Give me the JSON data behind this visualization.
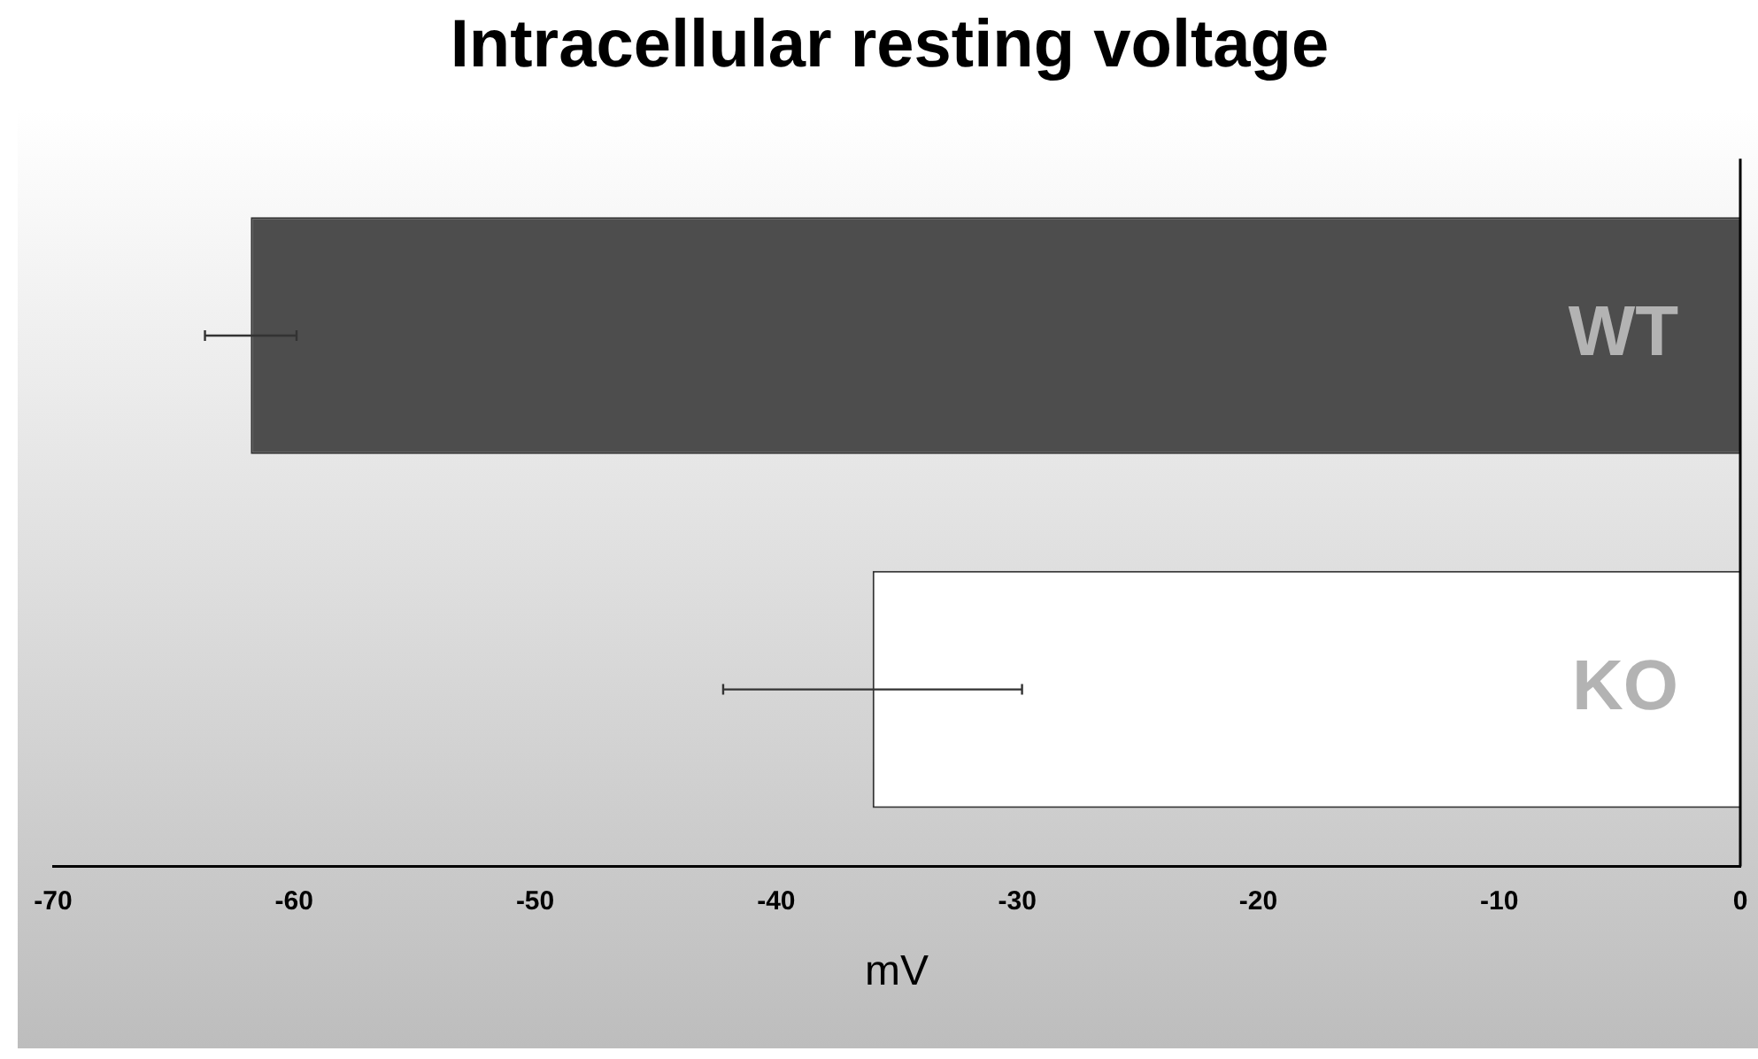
{
  "chart_data": {
    "type": "bar",
    "orientation": "horizontal",
    "title": "Intracellular resting voltage",
    "xlabel": "mV",
    "categories": [
      "WT",
      "KO"
    ],
    "values": [
      -61.8,
      -36.0
    ],
    "errors": [
      1.9,
      6.2
    ],
    "colors": [
      "#4d4d4d",
      "#ffffff"
    ],
    "xlim": [
      -70,
      0
    ],
    "xticks": [
      -70,
      -60,
      -50,
      -40,
      -30,
      -20,
      -10,
      0
    ],
    "grid": false,
    "legend": false
  }
}
